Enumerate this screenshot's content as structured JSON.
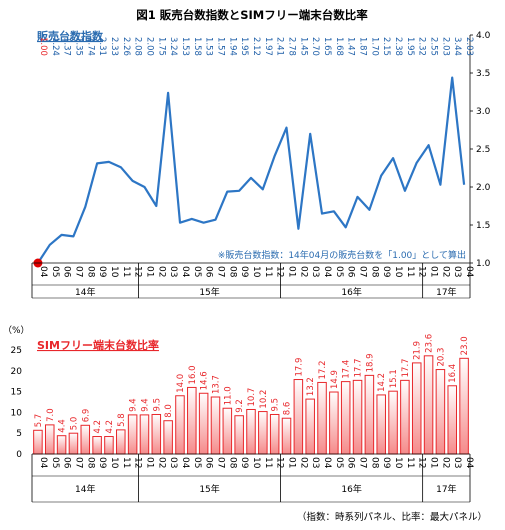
{
  "title": "図1  販売台数指数とSIMフリー端末台数比率",
  "note_text": "※販売台数指数：14年04月の販売台数を「1.00」として算出",
  "footnote": "（指数：時系列パネル、比率：最大パネル）",
  "colors": {
    "line": "#2D76C5",
    "bar_fill": "#FFFFFF",
    "bar_stroke": "#E8272B",
    "bar_gradient": "#F58A8A",
    "first_point": "#E00000"
  },
  "months": [
    "04",
    "05",
    "06",
    "07",
    "08",
    "09",
    "10",
    "11",
    "12",
    "01",
    "02",
    "03",
    "04",
    "05",
    "06",
    "07",
    "08",
    "09",
    "10",
    "11",
    "12",
    "01",
    "02",
    "03",
    "04",
    "05",
    "06",
    "07",
    "08",
    "09",
    "10",
    "11",
    "12",
    "01",
    "02",
    "03",
    "04"
  ],
  "years": [
    {
      "label": "14年",
      "start": 0,
      "end": 8
    },
    {
      "label": "15年",
      "start": 9,
      "end": 20
    },
    {
      "label": "16年",
      "start": 21,
      "end": 32
    },
    {
      "label": "17年",
      "start": 33,
      "end": 36
    }
  ],
  "chart_data": [
    {
      "type": "line",
      "title": "販売台数指数",
      "ylim": [
        1.0,
        4.0
      ],
      "yticks": [
        "1.0",
        "1.5",
        "2.0",
        "2.5",
        "3.0",
        "3.5",
        "4.0"
      ],
      "value_labels": [
        "1.00",
        "1.24",
        "1.37",
        "1.35",
        "1.74",
        "2.31",
        "2.33",
        "2.26",
        "2.08",
        "2.00",
        "1.75",
        "3.24",
        "1.53",
        "1.58",
        "1.53",
        "1.57",
        "1.94",
        "1.95",
        "2.12",
        "1.97",
        "2.41",
        "2.78",
        "1.45",
        "2.70",
        "1.65",
        "1.68",
        "1.47",
        "1.87",
        "1.70",
        "2.15",
        "2.38",
        "1.95",
        "2.32",
        "2.55",
        "2.03",
        "3.44",
        "2.03"
      ],
      "values": [
        1.0,
        1.24,
        1.37,
        1.35,
        1.74,
        2.31,
        2.33,
        2.26,
        2.08,
        2.0,
        1.75,
        3.24,
        1.53,
        1.58,
        1.53,
        1.57,
        1.94,
        1.95,
        2.12,
        1.97,
        2.41,
        2.78,
        1.45,
        2.7,
        1.65,
        1.68,
        1.47,
        1.87,
        1.7,
        2.15,
        2.38,
        1.95,
        2.32,
        2.55,
        2.03,
        3.44,
        2.03
      ]
    },
    {
      "type": "bar",
      "title": "SIMフリー端末台数比率",
      "unit": "（%）",
      "ylim": [
        0,
        25
      ],
      "yticks": [
        "0",
        "5",
        "10",
        "15",
        "20",
        "25"
      ],
      "value_labels": [
        "5.7",
        "7.0",
        "4.4",
        "5.0",
        "6.9",
        "4.2",
        "4.2",
        "5.8",
        "9.4",
        "9.4",
        "9.5",
        "8.0",
        "14.0",
        "16.0",
        "14.6",
        "13.7",
        "11.0",
        "9.2",
        "10.7",
        "10.2",
        "9.5",
        "8.6",
        "17.9",
        "13.2",
        "17.2",
        "14.9",
        "17.4",
        "17.7",
        "18.9",
        "14.2",
        "15.1",
        "17.7",
        "21.9",
        "23.6",
        "20.3",
        "16.4",
        "23.0"
      ],
      "values": [
        5.7,
        7.0,
        4.4,
        5.0,
        6.9,
        4.2,
        4.2,
        5.8,
        9.4,
        9.4,
        9.5,
        8.0,
        14.0,
        16.0,
        14.6,
        13.7,
        11.0,
        9.2,
        10.7,
        10.2,
        9.5,
        8.6,
        17.9,
        13.2,
        17.2,
        14.9,
        17.4,
        17.7,
        18.9,
        14.2,
        15.1,
        17.7,
        21.9,
        23.6,
        20.3,
        16.4,
        23.0
      ]
    }
  ]
}
